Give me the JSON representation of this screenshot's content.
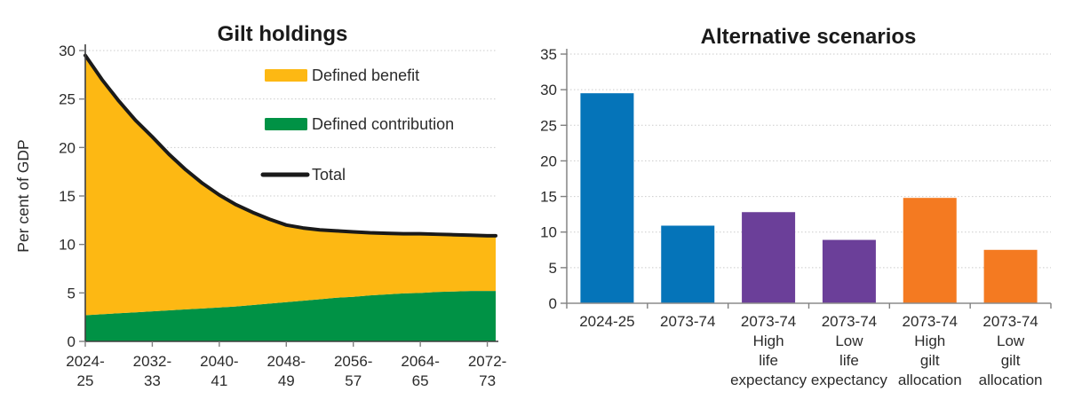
{
  "page": {
    "background": "#FFFFFF"
  },
  "styles": {
    "grid_color": "#CBCBCB",
    "axis_color_left_chart": "#3F3F3F",
    "axis_color_right_chart": "#8C8C8C",
    "tick_color": "#808080",
    "text_color": "#2B2B2B",
    "title_color": "#1A1A1A",
    "accent_yellow": "#FDB813",
    "accent_green": "#009245",
    "accent_blue": "#0574B9",
    "accent_purple": "#6B3F99",
    "accent_orange": "#F47A21",
    "accent_black": "#1A1A1A"
  },
  "chart_data": [
    {
      "id": "gilt-holdings",
      "type": "area",
      "title": "Gilt holdings",
      "xlabel": "",
      "ylabel": "Per cent of GDP",
      "ylim": [
        0,
        30
      ],
      "ytick_values": [
        0,
        5,
        10,
        15,
        20,
        25,
        30
      ],
      "xlim": [
        2024,
        2073
      ],
      "grid": "horizontal-dotted",
      "legend_position": "inside-top-right",
      "legend": [
        {
          "label": "Defined benefit",
          "swatch": "rect",
          "color": "#FDB813"
        },
        {
          "label": "Defined contribution",
          "swatch": "rect",
          "color": "#009245"
        },
        {
          "label": "Total",
          "swatch": "line",
          "color": "#1A1A1A"
        }
      ],
      "xticks": [
        {
          "year": 2024,
          "lines": [
            "2024-",
            "25"
          ]
        },
        {
          "year": 2032,
          "lines": [
            "2032-",
            "33"
          ]
        },
        {
          "year": 2040,
          "lines": [
            "2040-",
            "41"
          ]
        },
        {
          "year": 2048,
          "lines": [
            "2048-",
            "49"
          ]
        },
        {
          "year": 2056,
          "lines": [
            "2056-",
            "57"
          ]
        },
        {
          "year": 2064,
          "lines": [
            "2064-",
            "65"
          ]
        },
        {
          "year": 2072,
          "lines": [
            "2072-",
            "73"
          ]
        }
      ],
      "x_years": [
        2024,
        2026,
        2028,
        2030,
        2032,
        2034,
        2036,
        2038,
        2040,
        2042,
        2044,
        2046,
        2048,
        2050,
        2052,
        2054,
        2056,
        2058,
        2060,
        2062,
        2064,
        2066,
        2068,
        2070,
        2072,
        2073
      ],
      "series": [
        {
          "name": "Defined contribution",
          "role": "area",
          "color": "#009245",
          "values": [
            2.7,
            2.8,
            2.9,
            3.0,
            3.1,
            3.2,
            3.3,
            3.4,
            3.5,
            3.6,
            3.75,
            3.9,
            4.05,
            4.2,
            4.35,
            4.5,
            4.6,
            4.75,
            4.85,
            4.95,
            5.0,
            5.1,
            5.15,
            5.2,
            5.2,
            5.2
          ]
        },
        {
          "name": "Defined benefit",
          "role": "area",
          "color": "#FDB813",
          "values": [
            26.8,
            24.2,
            21.9,
            19.8,
            18.0,
            16.1,
            14.4,
            12.9,
            11.6,
            10.5,
            9.55,
            8.7,
            7.95,
            7.5,
            7.15,
            6.9,
            6.7,
            6.45,
            6.3,
            6.15,
            6.1,
            5.95,
            5.85,
            5.75,
            5.7,
            5.7
          ]
        },
        {
          "name": "Total",
          "role": "line",
          "color": "#1A1A1A",
          "derived": "stack-sum"
        }
      ]
    },
    {
      "id": "alternative-scenarios",
      "type": "bar",
      "title": "Alternative scenarios",
      "xlabel": "",
      "ylabel": "",
      "ylim": [
        0,
        35
      ],
      "ytick_values": [
        0,
        5,
        10,
        15,
        20,
        25,
        30,
        35
      ],
      "grid": "horizontal-dotted",
      "categories": [
        {
          "lines": [
            "2024-25"
          ],
          "value": 29.5,
          "color": "#0574B9"
        },
        {
          "lines": [
            "2073-74"
          ],
          "value": 10.9,
          "color": "#0574B9"
        },
        {
          "lines": [
            "2073-74",
            "High",
            "life",
            "expectancy"
          ],
          "value": 12.8,
          "color": "#6B3F99"
        },
        {
          "lines": [
            "2073-74",
            "Low",
            "life",
            "expectancy"
          ],
          "value": 8.9,
          "color": "#6B3F99"
        },
        {
          "lines": [
            "2073-74",
            "High",
            "gilt",
            "allocation"
          ],
          "value": 14.8,
          "color": "#F47A21"
        },
        {
          "lines": [
            "2073-74",
            "Low",
            "gilt",
            "allocation"
          ],
          "value": 7.5,
          "color": "#F47A21"
        }
      ]
    }
  ]
}
